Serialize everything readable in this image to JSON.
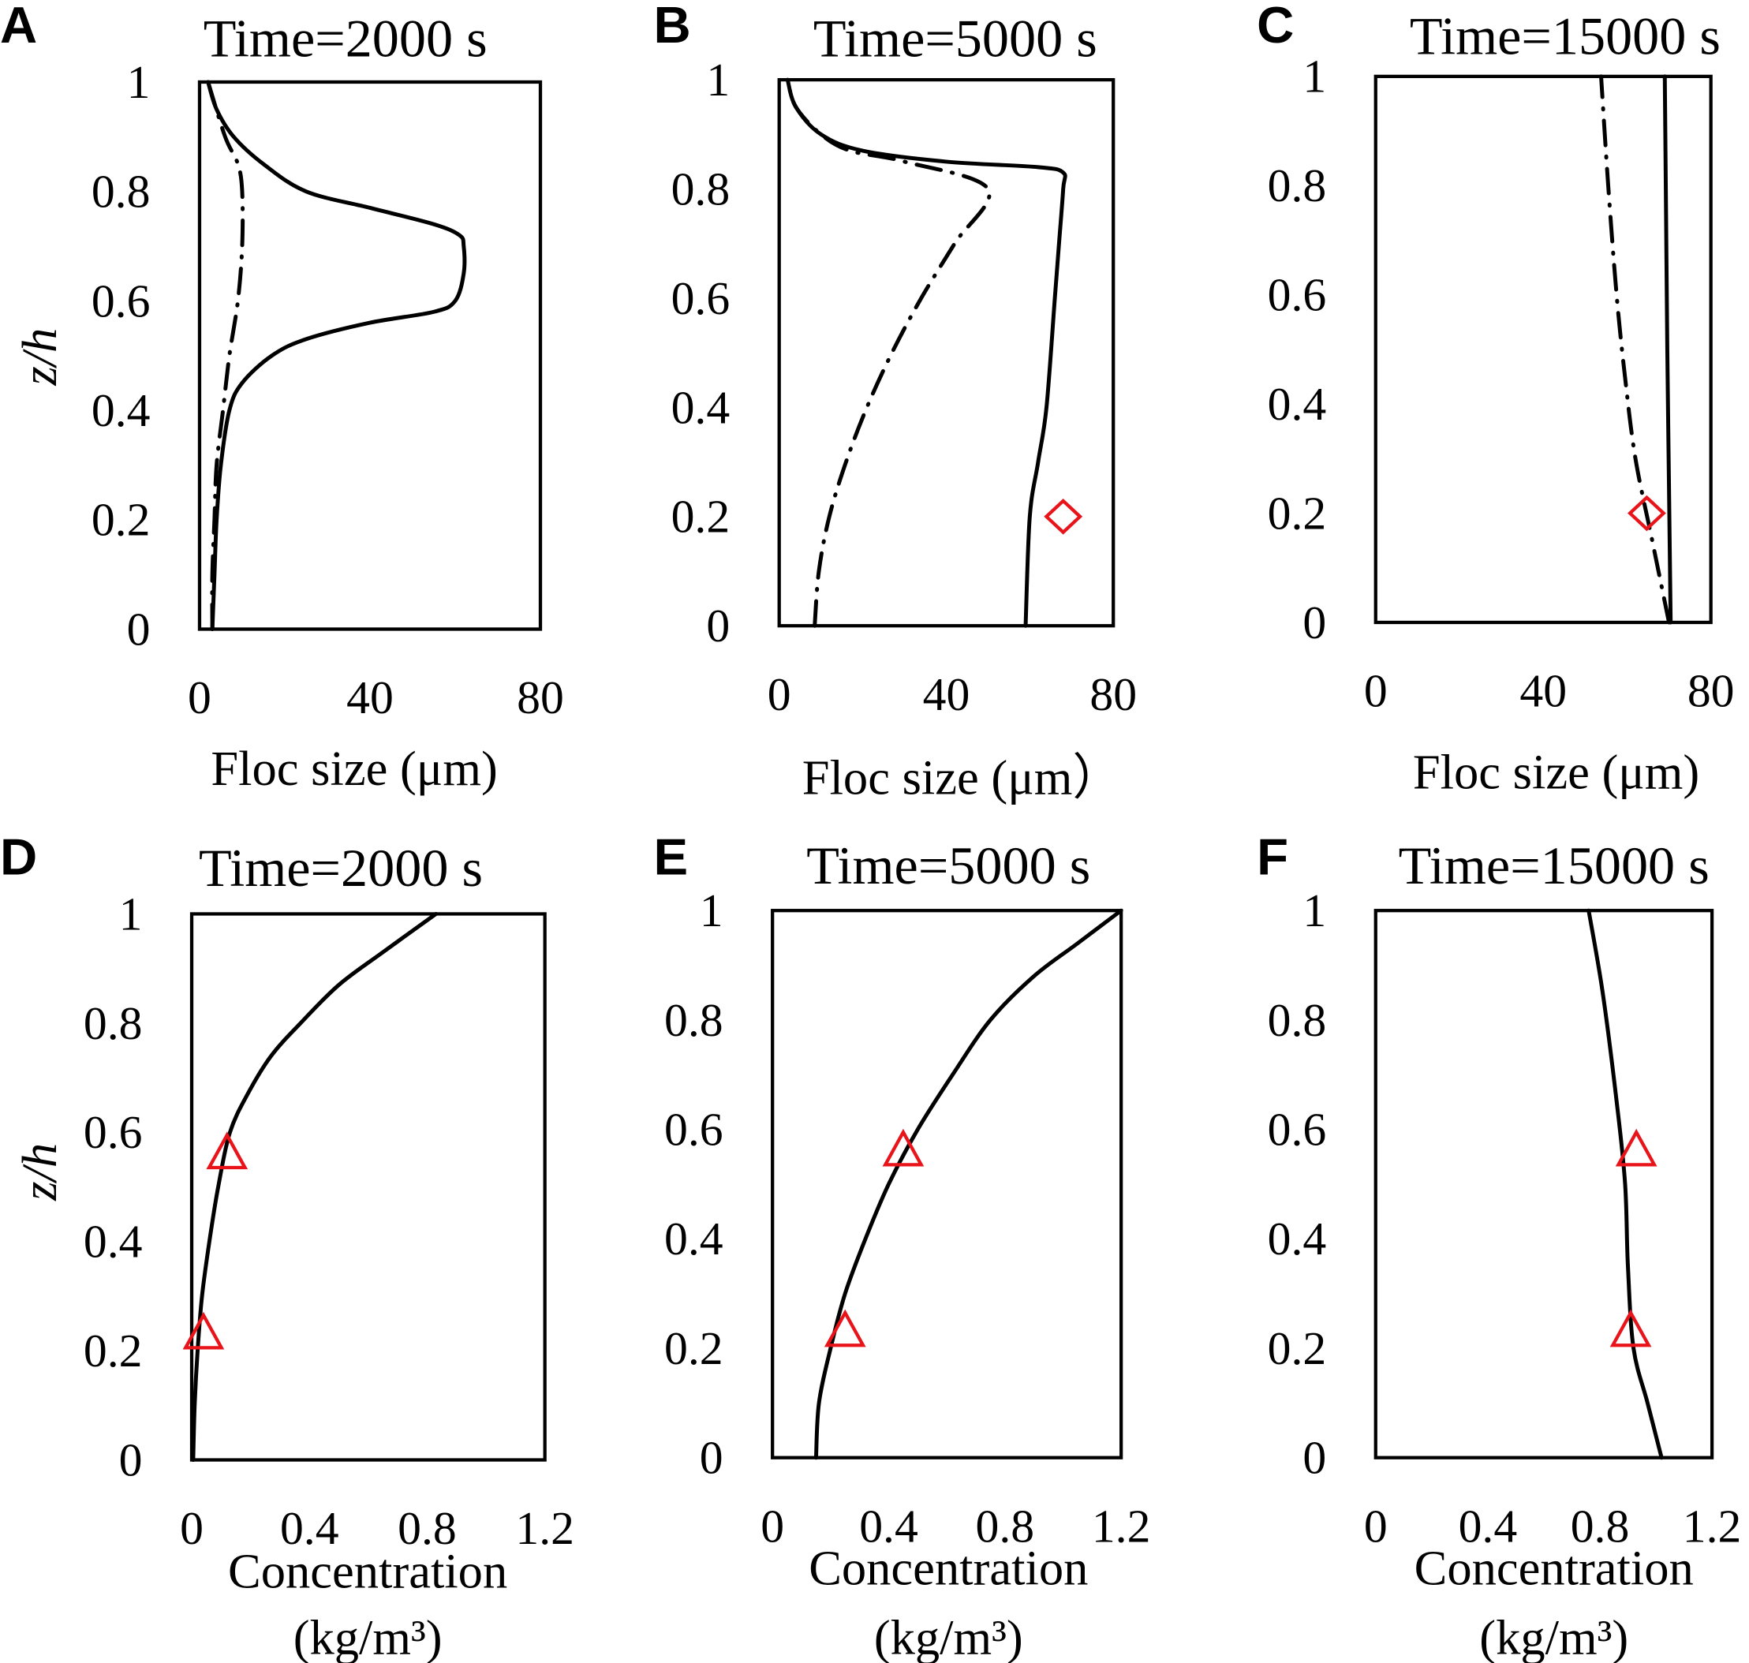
{
  "chart_data": [
    {
      "panel": "A",
      "type": "line",
      "title": "Time=2000 s",
      "xlabel": "Floc size (μm)",
      "ylabel": "z/h",
      "xlim": [
        0,
        80
      ],
      "ylim": [
        0,
        1
      ],
      "xticks": [
        "0",
        "40",
        "80"
      ],
      "yticks": [
        "0",
        "0.2",
        "0.4",
        "0.6",
        "0.8",
        "1"
      ],
      "series": [
        {
          "name": "solid",
          "style": "solid",
          "x": [
            3,
            3.5,
            4,
            5,
            7,
            10,
            17,
            25,
            40,
            55,
            60,
            62,
            62,
            61,
            55,
            40,
            25,
            15,
            8,
            4,
            2
          ],
          "y": [
            0,
            0.1,
            0.2,
            0.3,
            0.4,
            0.45,
            0.5,
            0.53,
            0.56,
            0.58,
            0.6,
            0.65,
            0.7,
            0.72,
            0.74,
            0.77,
            0.8,
            0.85,
            0.9,
            0.95,
            1
          ]
        },
        {
          "name": "dash-dot",
          "style": "dashdot",
          "x": [
            3,
            3,
            3.5,
            4,
            5.5,
            7,
            9,
            10,
            10,
            9,
            6,
            2
          ],
          "y": [
            0,
            0.1,
            0.2,
            0.3,
            0.4,
            0.5,
            0.6,
            0.7,
            0.8,
            0.85,
            0.9,
            1
          ]
        }
      ],
      "markers": []
    },
    {
      "panel": "B",
      "type": "line",
      "title": "Time=5000 s",
      "xlabel": "Floc size (μm）",
      "ylabel": "",
      "xlim": [
        0,
        80
      ],
      "ylim": [
        0,
        1
      ],
      "xticks": [
        "0",
        "40",
        "80"
      ],
      "yticks": [
        "0",
        "0.2",
        "0.4",
        "0.6",
        "0.8",
        "1"
      ],
      "series": [
        {
          "name": "solid",
          "style": "solid",
          "x": [
            59,
            60,
            62,
            64,
            66,
            67,
            68,
            68,
            62,
            40,
            20,
            10,
            4,
            2
          ],
          "y": [
            0,
            0.2,
            0.3,
            0.4,
            0.6,
            0.7,
            0.8,
            0.83,
            0.84,
            0.85,
            0.87,
            0.9,
            0.95,
            1
          ]
        },
        {
          "name": "dash-dot",
          "style": "dashdot",
          "x": [
            8.5,
            9.5,
            12,
            16,
            21,
            27,
            34,
            42,
            50,
            30,
            17,
            10,
            4,
            2
          ],
          "y": [
            0,
            0.1,
            0.2,
            0.3,
            0.4,
            0.5,
            0.6,
            0.7,
            0.8,
            0.85,
            0.87,
            0.9,
            0.95,
            1
          ]
        }
      ],
      "markers": [
        {
          "shape": "diamond",
          "x": 68,
          "y": 0.2,
          "color": "#e8141a"
        }
      ]
    },
    {
      "panel": "C",
      "type": "line",
      "title": "Time=15000 s",
      "xlabel": "Floc size (μm)",
      "ylabel": "",
      "xlim": [
        0,
        80
      ],
      "ylim": [
        0,
        1
      ],
      "xticks": [
        "0",
        "40",
        "80"
      ],
      "yticks": [
        "0",
        "0.2",
        "0.4",
        "0.6",
        "0.8",
        "1"
      ],
      "series": [
        {
          "name": "solid",
          "style": "solid",
          "x": [
            70.4,
            70,
            69.6,
            69.3,
            69
          ],
          "y": [
            0,
            0.25,
            0.5,
            0.75,
            1
          ]
        },
        {
          "name": "dash-dot",
          "style": "dashdot",
          "x": [
            70,
            66,
            62,
            59.5,
            57.5,
            55.5,
            53.8
          ],
          "y": [
            0,
            0.15,
            0.3,
            0.45,
            0.6,
            0.8,
            1
          ]
        }
      ],
      "markers": [
        {
          "shape": "diamond",
          "x": 64.7,
          "y": 0.2,
          "color": "#e8141a"
        }
      ]
    },
    {
      "panel": "D",
      "type": "line",
      "title": "Time=2000 s",
      "xlabel": "Concentration",
      "xlabel2": "(kg/m³)",
      "ylabel": "z/h",
      "xlim": [
        0,
        1.2
      ],
      "ylim": [
        0,
        1
      ],
      "xticks": [
        "0",
        "0.4",
        "0.8",
        "1.2"
      ],
      "yticks": [
        "0",
        "0.2",
        "0.4",
        "0.6",
        "0.8",
        "1"
      ],
      "series": [
        {
          "name": "concentration",
          "style": "solid",
          "x": [
            0.005,
            0.01,
            0.02,
            0.035,
            0.06,
            0.09,
            0.13,
            0.19,
            0.27,
            0.37,
            0.5,
            0.65,
            0.83
          ],
          "y": [
            0,
            0.1,
            0.2,
            0.3,
            0.4,
            0.5,
            0.6,
            0.67,
            0.74,
            0.8,
            0.87,
            0.93,
            1
          ]
        }
      ],
      "markers": [
        {
          "shape": "triangle",
          "x": 0.12,
          "y": 0.56,
          "color": "#e8141a"
        },
        {
          "shape": "triangle",
          "x": 0.04,
          "y": 0.23,
          "color": "#e8141a"
        }
      ]
    },
    {
      "panel": "E",
      "type": "line",
      "title": "Time=5000 s",
      "xlabel": "Concentration",
      "xlabel2": "(kg/m³)",
      "ylabel": "",
      "xlim": [
        0,
        1.2
      ],
      "ylim": [
        0,
        1
      ],
      "xticks": [
        "0",
        "0.4",
        "0.8",
        "1.2"
      ],
      "yticks": [
        "0",
        "0.2",
        "0.4",
        "0.6",
        "0.8",
        "1"
      ],
      "series": [
        {
          "name": "concentration",
          "style": "solid",
          "x": [
            0.15,
            0.16,
            0.2,
            0.25,
            0.32,
            0.4,
            0.5,
            0.62,
            0.75,
            0.9,
            1.05,
            1.2
          ],
          "y": [
            0,
            0.1,
            0.2,
            0.3,
            0.4,
            0.5,
            0.6,
            0.7,
            0.8,
            0.88,
            0.94,
            1
          ]
        }
      ],
      "markers": [
        {
          "shape": "triangle",
          "x": 0.45,
          "y": 0.56,
          "color": "#e8141a"
        },
        {
          "shape": "triangle",
          "x": 0.25,
          "y": 0.23,
          "color": "#e8141a"
        }
      ]
    },
    {
      "panel": "F",
      "type": "line",
      "title": "Time=15000 s",
      "xlabel": "Concentration",
      "xlabel2": "(kg/m³)",
      "ylabel": "",
      "xlim": [
        0,
        1.2
      ],
      "ylim": [
        0,
        1
      ],
      "xticks": [
        "0",
        "0.4",
        "0.8",
        "1.2"
      ],
      "yticks": [
        "0",
        "0.2",
        "0.4",
        "0.6",
        "0.8",
        "1"
      ],
      "series": [
        {
          "name": "concentration",
          "style": "solid",
          "x": [
            1.02,
            0.97,
            0.92,
            0.9,
            0.89,
            0.86,
            0.81,
            0.76
          ],
          "y": [
            0,
            0.1,
            0.2,
            0.35,
            0.5,
            0.65,
            0.85,
            1
          ]
        }
      ],
      "markers": [
        {
          "shape": "triangle",
          "x": 0.93,
          "y": 0.56,
          "color": "#e8141a"
        },
        {
          "shape": "triangle",
          "x": 0.91,
          "y": 0.23,
          "color": "#e8141a"
        }
      ]
    }
  ]
}
